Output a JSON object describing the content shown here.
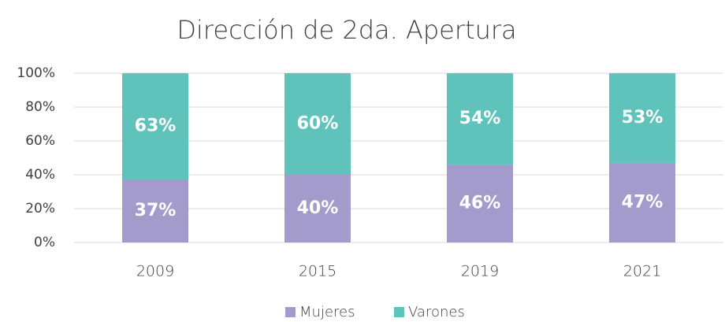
{
  "chart_data": {
    "type": "stacked_bar",
    "title": "Dirección de 2da. Apertura",
    "categories": [
      "2009",
      "2015",
      "2019",
      "2021"
    ],
    "series": [
      {
        "name": "Mujeres",
        "color": "#a29bcb",
        "values": [
          37,
          40,
          46,
          47
        ],
        "value_labels": [
          "37%",
          "40%",
          "46%",
          "47%"
        ]
      },
      {
        "name": "Varones",
        "color": "#5fc3bc",
        "values": [
          63,
          60,
          54,
          53
        ],
        "value_labels": [
          "63%",
          "60%",
          "54%",
          "53%"
        ]
      }
    ],
    "ylim": [
      0,
      100
    ],
    "yticks": [
      {
        "value": 0,
        "label": "0%"
      },
      {
        "value": 20,
        "label": "20%"
      },
      {
        "value": 40,
        "label": "40%"
      },
      {
        "value": 60,
        "label": "60%"
      },
      {
        "value": 80,
        "label": "80%"
      },
      {
        "value": 100,
        "label": "100%"
      }
    ],
    "grid": true,
    "legend": "bottom"
  }
}
